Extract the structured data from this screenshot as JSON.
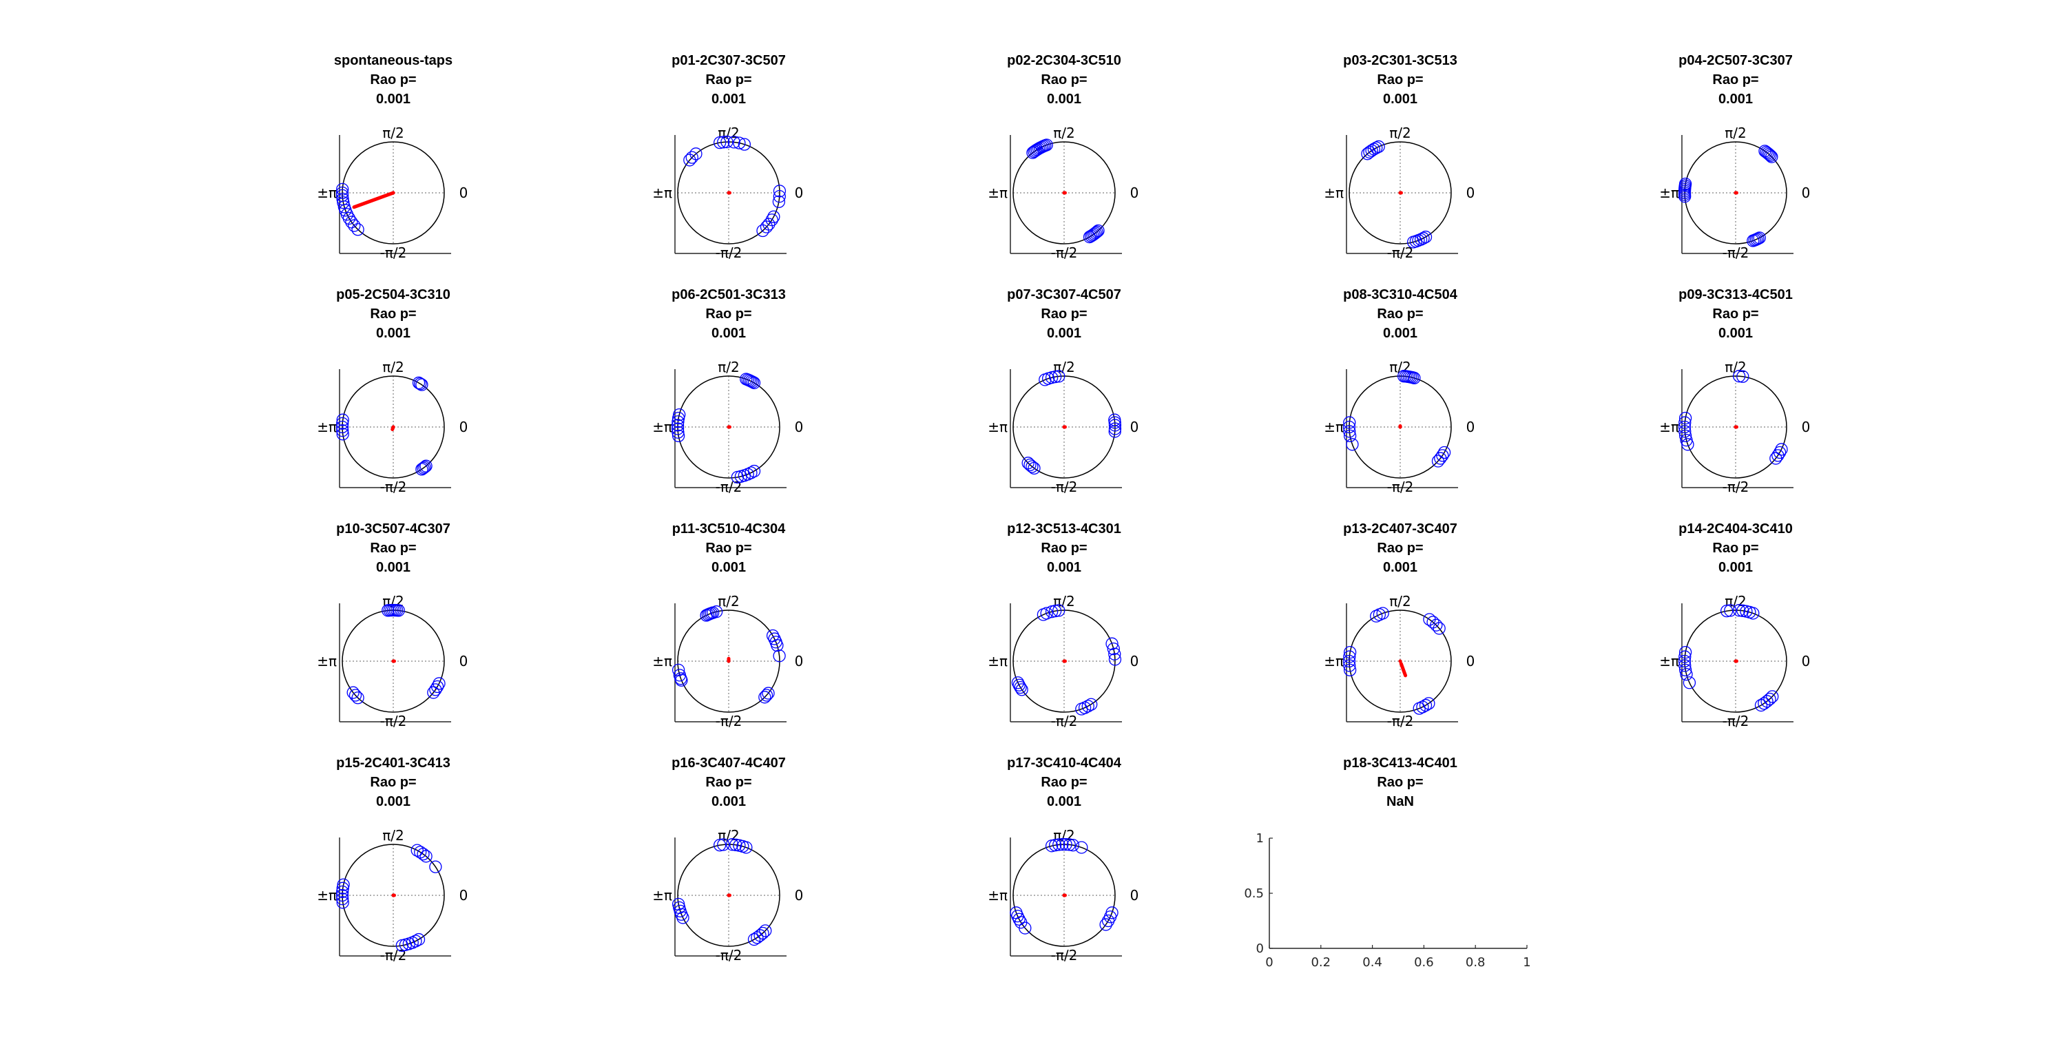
{
  "figure": {
    "tick_labels": {
      "top": "π/2",
      "bottom": "-π/2",
      "left": "±π",
      "right": "0"
    },
    "colors": {
      "points": "#0000ff",
      "mean_vector": "#ff0000",
      "circle": "#000000",
      "axis": "#262626",
      "grid": "#808080"
    }
  },
  "chart_data": [
    {
      "type": "circular-scatter",
      "title": [
        "spontaneous-taps",
        "Rao p=",
        "0.001"
      ],
      "angles_deg": [
        176,
        180,
        183,
        187,
        191,
        196,
        200,
        205,
        210,
        215,
        220,
        226
      ],
      "mean_vector": {
        "angle_deg": 200,
        "length": 0.82
      }
    },
    {
      "type": "circular-scatter",
      "title": [
        "p01-2C307-3C507",
        "Rao p=",
        "0.001"
      ],
      "angles_deg": [
        72,
        78,
        84,
        92,
        96,
        100,
        130,
        136,
        140,
        312,
        318,
        322,
        328,
        332,
        350,
        356,
        2
      ],
      "mean_vector": {
        "angle_deg": 0,
        "length": 0.02
      }
    },
    {
      "type": "circular-scatter",
      "title": [
        "p02-2C304-3C510",
        "Rao p=",
        "0.001"
      ],
      "angles_deg": [
        110,
        112,
        114,
        116,
        118,
        120,
        122,
        124,
        126,
        128,
        300,
        302,
        304,
        306,
        308,
        310,
        312
      ],
      "mean_vector": {
        "angle_deg": 0,
        "length": 0.02
      }
    },
    {
      "type": "circular-scatter",
      "title": [
        "p03-2C301-3C513",
        "Rao p=",
        "0.001"
      ],
      "angles_deg": [
        115,
        118,
        121,
        124,
        127,
        130,
        285,
        288,
        291,
        294,
        297,
        300
      ],
      "mean_vector": {
        "angle_deg": 0,
        "length": 0.02
      }
    },
    {
      "type": "circular-scatter",
      "title": [
        "p04-2C507-3C307",
        "Rao p=",
        "0.001"
      ],
      "angles_deg": [
        45,
        47,
        49,
        51,
        53,
        55,
        170,
        172,
        174,
        176,
        178,
        180,
        182,
        184,
        290,
        292,
        294,
        296,
        298
      ],
      "mean_vector": {
        "angle_deg": 0,
        "length": 0.02
      }
    },
    {
      "type": "circular-scatter",
      "title": [
        "p05-2C504-3C310",
        "Rao p=",
        "0.001"
      ],
      "angles_deg": [
        56,
        58,
        60,
        172,
        176,
        180,
        184,
        188,
        304,
        306,
        308,
        310
      ],
      "mean_vector": {
        "angle_deg": 250,
        "length": 0.05
      }
    },
    {
      "type": "circular-scatter",
      "title": [
        "p06-2C501-3C313",
        "Rao p=",
        "0.001"
      ],
      "angles_deg": [
        60,
        62,
        64,
        66,
        68,
        70,
        166,
        170,
        174,
        178,
        182,
        186,
        190,
        280,
        284,
        288,
        292,
        296,
        300
      ],
      "mean_vector": {
        "angle_deg": 0,
        "length": 0.02
      }
    },
    {
      "type": "circular-scatter",
      "title": [
        "p07-3C307-4C507",
        "Rao p=",
        "0.001"
      ],
      "angles_deg": [
        96,
        100,
        104,
        108,
        112,
        225,
        228,
        231,
        234,
        355,
        358,
        2,
        5,
        8
      ],
      "mean_vector": {
        "angle_deg": 0,
        "length": 0.02
      }
    },
    {
      "type": "circular-scatter",
      "title": [
        "p08-3C310-4C504",
        "Rao p=",
        "0.001"
      ],
      "angles_deg": [
        74,
        76,
        78,
        80,
        82,
        84,
        86,
        175,
        180,
        185,
        190,
        200,
        318,
        322,
        326,
        330
      ],
      "mean_vector": {
        "angle_deg": 90,
        "length": 0.02
      }
    },
    {
      "type": "circular-scatter",
      "title": [
        "p09-3C313-4C501",
        "Rao p=",
        "0.001"
      ],
      "angles_deg": [
        82,
        86,
        170,
        175,
        180,
        185,
        190,
        195,
        200,
        322,
        326,
        330,
        334
      ],
      "mean_vector": {
        "angle_deg": 0,
        "length": 0.02
      }
    },
    {
      "type": "circular-scatter",
      "title": [
        "p10-3C507-4C307",
        "Rao p=",
        "0.001"
      ],
      "angles_deg": [
        84,
        86,
        88,
        90,
        92,
        94,
        96,
        218,
        222,
        226,
        322,
        326,
        330,
        334
      ],
      "mean_vector": {
        "angle_deg": 0,
        "length": 0.02
      }
    },
    {
      "type": "circular-scatter",
      "title": [
        "p11-3C510-4C304",
        "Rao p=",
        "0.001"
      ],
      "angles_deg": [
        104,
        108,
        110,
        112,
        114,
        116,
        18,
        22,
        26,
        30,
        6,
        190,
        196,
        200,
        202,
        315,
        318,
        321
      ],
      "mean_vector": {
        "angle_deg": 90,
        "length": 0.05
      }
    },
    {
      "type": "circular-scatter",
      "title": [
        "p12-3C513-4C301",
        "Rao p=",
        "0.001"
      ],
      "angles_deg": [
        96,
        100,
        104,
        110,
        114,
        20,
        14,
        8,
        2,
        205,
        208,
        211,
        214,
        290,
        294,
        298,
        302
      ],
      "mean_vector": {
        "angle_deg": 0,
        "length": 0.02
      }
    },
    {
      "type": "circular-scatter",
      "title": [
        "p13-2C407-3C407",
        "Rao p=",
        "0.001"
      ],
      "angles_deg": [
        110,
        114,
        118,
        40,
        45,
        50,
        55,
        170,
        175,
        180,
        185,
        190,
        292,
        296,
        300,
        304
      ],
      "mean_vector": {
        "angle_deg": 290,
        "length": 0.3,
        "from_length": 0.05
      }
    },
    {
      "type": "circular-scatter",
      "title": [
        "p14-2C404-3C410",
        "Rao p=",
        "0.001"
      ],
      "angles_deg": [
        70,
        74,
        78,
        82,
        86,
        96,
        100,
        170,
        175,
        180,
        185,
        190,
        195,
        205,
        300,
        304,
        308,
        312,
        316
      ],
      "mean_vector": {
        "angle_deg": 0,
        "length": 0.02
      }
    },
    {
      "type": "circular-scatter",
      "title": [
        "p15-2C401-3C413",
        "Rao p=",
        "0.001"
      ],
      "angles_deg": [
        50,
        54,
        58,
        62,
        34,
        168,
        172,
        176,
        180,
        184,
        188,
        280,
        284,
        288,
        292,
        296,
        300
      ],
      "mean_vector": {
        "angle_deg": 0,
        "length": 0.02
      }
    },
    {
      "type": "circular-scatter",
      "title": [
        "p16-3C407-4C407",
        "Rao p=",
        "0.001"
      ],
      "angles_deg": [
        70,
        74,
        78,
        82,
        86,
        96,
        100,
        190,
        194,
        198,
        202,
        206,
        300,
        304,
        308,
        312,
        316
      ],
      "mean_vector": {
        "angle_deg": 0,
        "length": 0.02
      }
    },
    {
      "type": "circular-scatter",
      "title": [
        "p17-3C410-4C404",
        "Rao p=",
        "0.001"
      ],
      "angles_deg": [
        100,
        104,
        96,
        92,
        88,
        84,
        80,
        70,
        200,
        204,
        208,
        212,
        220,
        325,
        330,
        335,
        340
      ],
      "mean_vector": {
        "angle_deg": 0,
        "length": 0.02
      }
    },
    {
      "type": "empty-axes",
      "title": [
        "p18-3C413-4C401",
        "Rao p=",
        "NaN"
      ],
      "xlim": [
        0,
        1
      ],
      "ylim": [
        0,
        1
      ],
      "xticks": [
        "0",
        "0.2",
        "0.4",
        "0.6",
        "0.8",
        "1"
      ],
      "yticks": [
        "0",
        "0.5",
        "1"
      ]
    }
  ]
}
